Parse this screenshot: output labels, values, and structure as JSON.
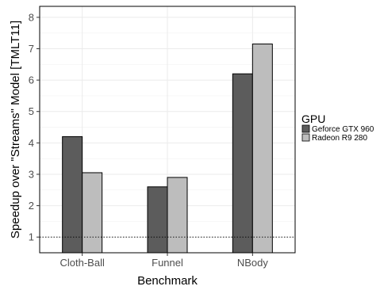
{
  "chart_data": {
    "type": "bar",
    "categories": [
      "Cloth-Ball",
      "Funnel",
      "NBody"
    ],
    "series": [
      {
        "name": "Geforce GTX 960",
        "values": [
          4.2,
          2.6,
          6.2
        ],
        "color": "#5c5c5c"
      },
      {
        "name": "Radeon R9 280",
        "values": [
          3.05,
          2.9,
          7.15
        ],
        "color": "#bdbdbd"
      }
    ],
    "title": "",
    "xlabel": "Benchmark",
    "ylabel": "Speedup over \"Streams\" Model [TMLT11]",
    "ylim": [
      0.5,
      8.35
    ],
    "yticks": [
      1,
      2,
      3,
      4,
      5,
      6,
      7,
      8
    ],
    "reference_line": {
      "y": 1,
      "style": "dotted"
    },
    "legend": {
      "title": "GPU",
      "position": "right"
    },
    "grid": true
  }
}
